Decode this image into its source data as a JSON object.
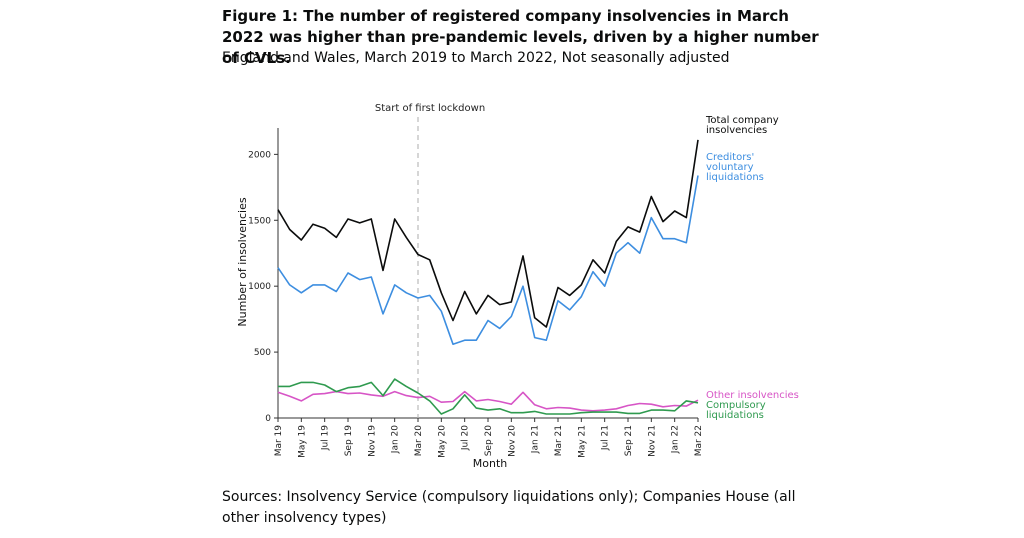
{
  "title": "Figure 1: The number of registered company insolvencies in March 2022 was higher than pre-pandemic levels, driven by a higher number of CVLs.",
  "subtitle": "England and Wales, March 2019 to March 2022, Not seasonally adjusted",
  "sources": "Sources: Insolvency Service (compulsory liquidations only); Companies House (all other insolvency types)",
  "chart_data": {
    "type": "line",
    "xlabel": "Month",
    "ylabel": "Number of insolvencies",
    "ylim": [
      0,
      2200
    ],
    "y_ticks": [
      0,
      500,
      1000,
      1500,
      2000
    ],
    "grid": false,
    "x": [
      "Mar 19",
      "Apr 19",
      "May 19",
      "Jun 19",
      "Jul 19",
      "Aug 19",
      "Sep 19",
      "Oct 19",
      "Nov 19",
      "Dec 19",
      "Jan 20",
      "Feb 20",
      "Mar 20",
      "Apr 20",
      "May 20",
      "Jun 20",
      "Jul 20",
      "Aug 20",
      "Sep 20",
      "Oct 20",
      "Nov 20",
      "Dec 20",
      "Jan 21",
      "Feb 21",
      "Mar 21",
      "Apr 21",
      "May 21",
      "Jun 21",
      "Jul 21",
      "Aug 21",
      "Sep 21",
      "Oct 21",
      "Nov 21",
      "Dec 21",
      "Jan 22",
      "Feb 22",
      "Mar 22"
    ],
    "x_tick_labels": [
      "Mar 19",
      "May 19",
      "Jul 19",
      "Sep 19",
      "Nov 19",
      "Jan 20",
      "Mar 20",
      "May 20",
      "Jul 20",
      "Sep 20",
      "Nov 20",
      "Jan 21",
      "Mar 21",
      "May 21",
      "Jul 21",
      "Sep 21",
      "Nov 21",
      "Jan 22",
      "Mar 22"
    ],
    "annotation": {
      "label": "Start of first lockdown",
      "x": "Mar 20"
    },
    "series": [
      {
        "name": "Total company insolvencies",
        "color": "#0b0c0c",
        "values": [
          1580,
          1430,
          1350,
          1470,
          1440,
          1370,
          1510,
          1480,
          1510,
          1120,
          1510,
          1370,
          1240,
          1200,
          950,
          740,
          960,
          790,
          930,
          860,
          880,
          1230,
          760,
          690,
          990,
          930,
          1010,
          1200,
          1100,
          1340,
          1450,
          1410,
          1680,
          1490,
          1570,
          1520,
          2110
        ]
      },
      {
        "name": "Creditors' voluntary liquidations",
        "color": "#3d8ee0",
        "values": [
          1140,
          1010,
          950,
          1010,
          1010,
          960,
          1100,
          1050,
          1070,
          790,
          1010,
          950,
          910,
          930,
          810,
          560,
          590,
          590,
          740,
          680,
          770,
          1000,
          610,
          590,
          890,
          820,
          920,
          1110,
          1000,
          1250,
          1330,
          1250,
          1520,
          1360,
          1360,
          1330,
          1840
        ]
      },
      {
        "name": "Other insolvencies",
        "color": "#d755c6",
        "values": [
          195,
          165,
          130,
          180,
          185,
          200,
          185,
          190,
          175,
          165,
          200,
          170,
          155,
          165,
          120,
          125,
          200,
          130,
          140,
          125,
          105,
          195,
          100,
          70,
          80,
          75,
          60,
          55,
          60,
          70,
          95,
          110,
          105,
          85,
          95,
          90,
          135
        ]
      },
      {
        "name": "Compulsory liquidations",
        "color": "#2f9a4f",
        "values": [
          240,
          240,
          270,
          270,
          250,
          200,
          230,
          240,
          270,
          170,
          295,
          240,
          190,
          130,
          30,
          70,
          175,
          75,
          60,
          70,
          40,
          40,
          50,
          30,
          30,
          30,
          40,
          45,
          45,
          45,
          35,
          35,
          60,
          60,
          55,
          130,
          115
        ]
      }
    ]
  }
}
